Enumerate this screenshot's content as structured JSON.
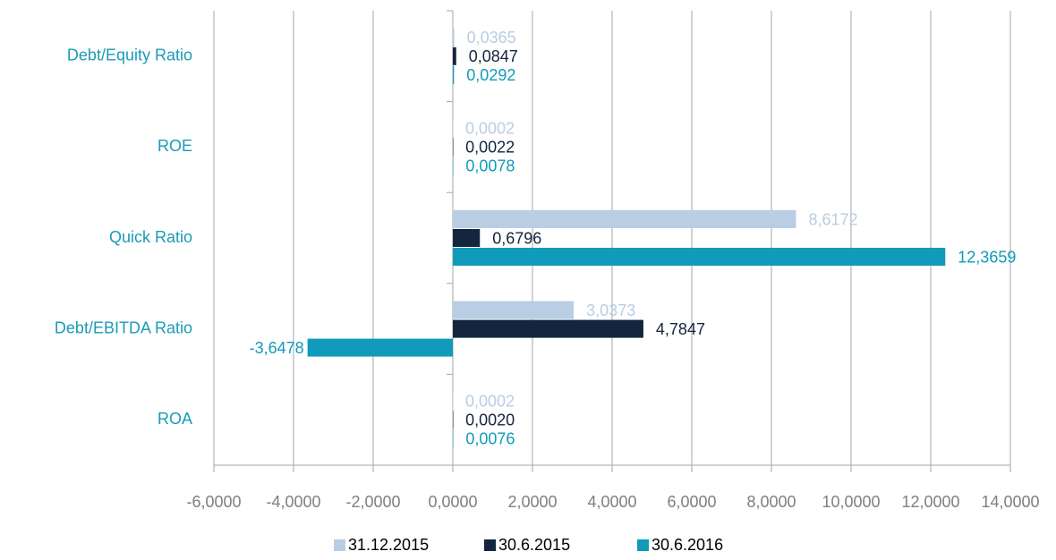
{
  "chart_data": {
    "type": "hbar",
    "categories": [
      "Debt/Equity Ratio",
      "ROE",
      "Quick Ratio",
      "Debt/EBITDA Ratio",
      "ROA"
    ],
    "series": [
      {
        "name": "31.12.2015",
        "color": "#b9cde5",
        "values": [
          0.0365,
          0.0002,
          8.6172,
          3.0373,
          0.0002
        ],
        "value_labels": [
          "0,0365",
          "0,0002",
          "8,6172",
          "3,0373",
          "0,0002"
        ]
      },
      {
        "name": "30.6.2015",
        "color": "#14253f",
        "values": [
          0.0847,
          0.0022,
          0.6796,
          4.7847,
          0.002
        ],
        "value_labels": [
          "0,0847",
          "0,0022",
          "0,6796",
          "4,7847",
          "0,0020"
        ]
      },
      {
        "name": "30.6.2016",
        "color": "#0f9bb9",
        "values": [
          0.0292,
          0.0078,
          12.3659,
          -3.6478,
          0.0076
        ],
        "value_labels": [
          "0,0292",
          "0,0078",
          "12,3659",
          "-3,6478",
          "0,0076"
        ]
      }
    ],
    "xlim": [
      -6,
      14
    ],
    "xticks": [
      {
        "value": -6,
        "label": "-6,0000"
      },
      {
        "value": -4,
        "label": "-4,0000"
      },
      {
        "value": -2,
        "label": "-2,0000"
      },
      {
        "value": 0,
        "label": "0,0000"
      },
      {
        "value": 2,
        "label": "2,0000"
      },
      {
        "value": 4,
        "label": "4,0000"
      },
      {
        "value": 6,
        "label": "6,0000"
      },
      {
        "value": 8,
        "label": "8,0000"
      },
      {
        "value": 10,
        "label": "10,0000"
      },
      {
        "value": 12,
        "label": "12,0000"
      },
      {
        "value": 14,
        "label": "14,0000"
      }
    ],
    "grid": true,
    "legend": "bottom"
  }
}
